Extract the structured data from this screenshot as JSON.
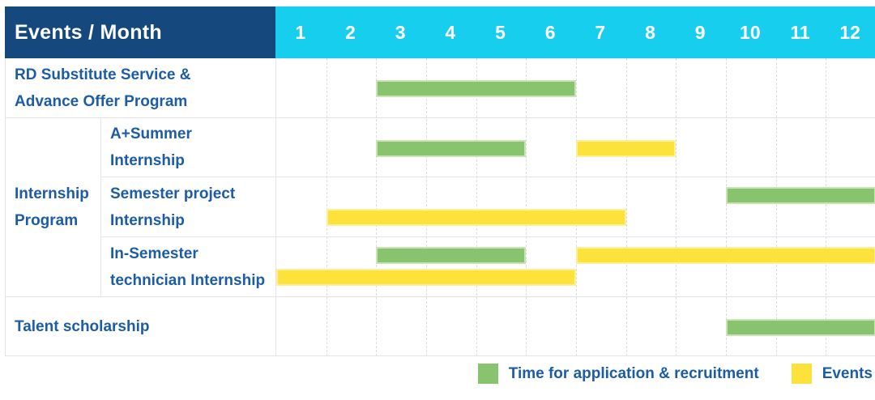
{
  "title": "Events / Month",
  "months": [
    "1",
    "2",
    "3",
    "4",
    "5",
    "6",
    "7",
    "8",
    "9",
    "10",
    "11",
    "12"
  ],
  "colors": {
    "header_bg": "#15497E",
    "month_header_bg": "#18CEEE",
    "green_bar": "#87C46D",
    "yellow_bar": "#FDE23C",
    "label_text": "#1C5CA5",
    "grid_line": "#E4E4E4"
  },
  "group": {
    "label_line1": "Internship",
    "label_line2": "Program"
  },
  "rows": [
    {
      "id": "rd-substitute",
      "label_line1": "RD Substitute Service &",
      "label_line2": "Advance Offer Program",
      "bars": [
        {
          "color": "green",
          "start_month": 3,
          "end_month": 6,
          "lane": "center"
        }
      ]
    },
    {
      "id": "a-plus-summer",
      "label_line1": "A+Summer",
      "label_line2": "Internship",
      "bars": [
        {
          "color": "green",
          "start_month": 3,
          "end_month": 5,
          "lane": "center"
        },
        {
          "color": "yellow",
          "start_month": 7,
          "end_month": 8,
          "lane": "center"
        }
      ]
    },
    {
      "id": "semester-project",
      "label_line1": "Semester project",
      "label_line2": "Internship",
      "bars": [
        {
          "color": "green",
          "start_month": 10,
          "end_month": 12,
          "lane": "top"
        },
        {
          "color": "yellow",
          "start_month": 2,
          "end_month": 7,
          "lane": "bottom"
        }
      ]
    },
    {
      "id": "in-semester-technician",
      "label_line1": "In-Semester",
      "label_line2": "technician Internship",
      "bars": [
        {
          "color": "green",
          "start_month": 3,
          "end_month": 5,
          "lane": "top"
        },
        {
          "color": "yellow",
          "start_month": 7,
          "end_month": 12,
          "lane": "top"
        },
        {
          "color": "yellow",
          "start_month": 1,
          "end_month": 6,
          "lane": "bottom"
        }
      ]
    },
    {
      "id": "talent-scholarship",
      "label_line1": "Talent scholarship",
      "label_line2": "",
      "bars": [
        {
          "color": "green",
          "start_month": 10,
          "end_month": 12,
          "lane": "center"
        }
      ]
    }
  ],
  "legend": [
    {
      "color": "green",
      "label": "Time for application & recruitment"
    },
    {
      "color": "yellow",
      "label": "Events"
    }
  ],
  "chart_data": {
    "type": "bar",
    "variant": "gantt",
    "title": "Events / Month",
    "xlabel": "Month",
    "x_ticks": [
      "1",
      "2",
      "3",
      "4",
      "5",
      "6",
      "7",
      "8",
      "9",
      "10",
      "11",
      "12"
    ],
    "x_range": [
      1,
      12
    ],
    "grid": true,
    "legend_position": "bottom-right",
    "series_names": [
      "Time for application & recruitment",
      "Events"
    ],
    "rows": [
      {
        "category": "RD Substitute Service & Advance Offer Program",
        "group": null,
        "bars": [
          {
            "series": "Time for application & recruitment",
            "start_month": 3,
            "end_month": 6
          }
        ]
      },
      {
        "category": "A+Summer Internship",
        "group": "Internship Program",
        "bars": [
          {
            "series": "Time for application & recruitment",
            "start_month": 3,
            "end_month": 5
          },
          {
            "series": "Events",
            "start_month": 7,
            "end_month": 8
          }
        ]
      },
      {
        "category": "Semester project Internship",
        "group": "Internship Program",
        "bars": [
          {
            "series": "Time for application & recruitment",
            "start_month": 10,
            "end_month": 12
          },
          {
            "series": "Events",
            "start_month": 2,
            "end_month": 7
          }
        ]
      },
      {
        "category": "In-Semester technician Internship",
        "group": "Internship Program",
        "bars": [
          {
            "series": "Time for application & recruitment",
            "start_month": 3,
            "end_month": 5
          },
          {
            "series": "Events",
            "start_month": 7,
            "end_month": 12
          },
          {
            "series": "Events",
            "start_month": 1,
            "end_month": 6
          }
        ]
      },
      {
        "category": "Talent scholarship",
        "group": null,
        "bars": [
          {
            "series": "Time for application & recruitment",
            "start_month": 10,
            "end_month": 12
          }
        ]
      }
    ]
  }
}
